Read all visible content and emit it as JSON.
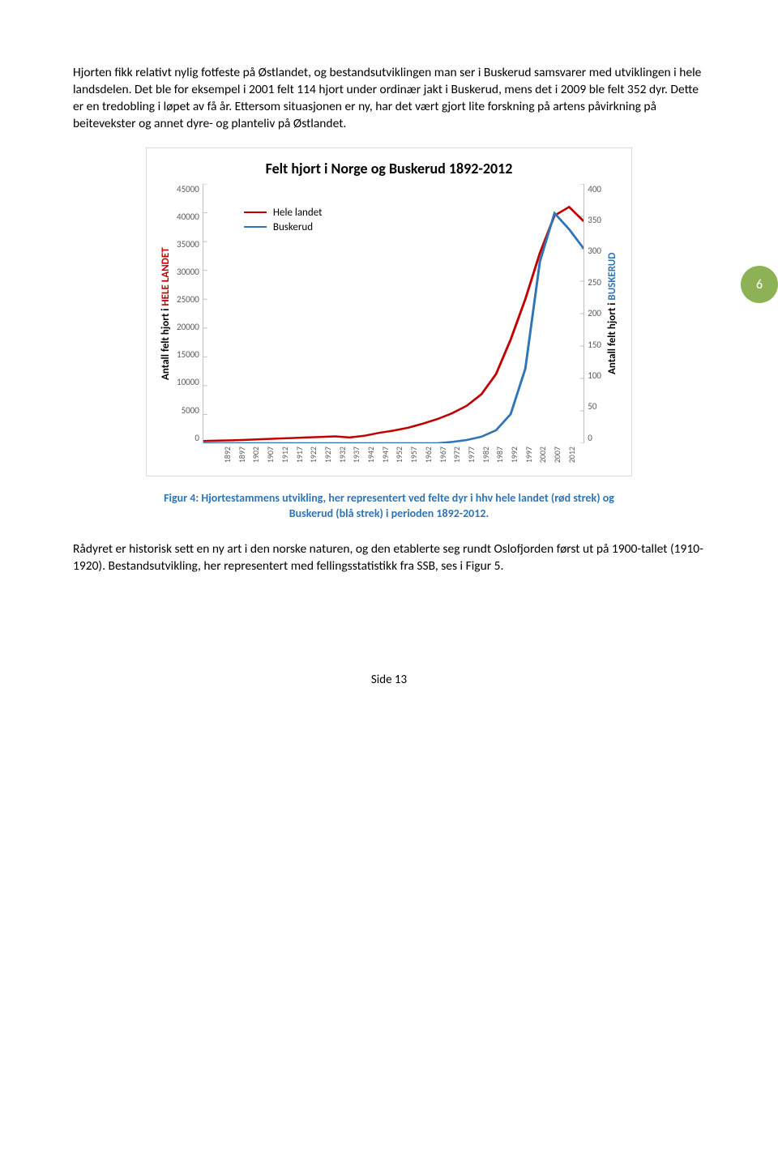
{
  "para1": "Hjorten fikk relativt nylig fotfeste på Østlandet, og bestandsutviklingen man ser i Buskerud samsvarer med utviklingen i hele landsdelen. Det ble for eksempel i 2001 felt  114 hjort under ordinær jakt i Buskerud, mens det i 2009 ble felt 352 dyr. Dette er en tredobling i løpet av få år. Ettersom situasjonen er ny, har det vært gjort lite forskning på artens påvirkning på beitevekster og annet dyre- og planteliv på Østlandet.",
  "page_badge": {
    "label": "6",
    "bg": "#8db256"
  },
  "chart": {
    "title": "Felt hjort i Norge og Buskerud 1892-2012",
    "ylabel_left_prefix": "Antall felt hjort i ",
    "ylabel_left_hi": "HELE LANDET",
    "ylabel_right_prefix": "Antall felt hjort i ",
    "ylabel_right_hi": "BUSKERUD",
    "y_left_ticks": [
      "45000",
      "40000",
      "35000",
      "30000",
      "25000",
      "20000",
      "15000",
      "10000",
      "5000",
      "0"
    ],
    "y_right_ticks": [
      "400",
      "350",
      "300",
      "250",
      "200",
      "150",
      "100",
      "50",
      "0"
    ],
    "x_ticks": [
      "1892",
      "1897",
      "1902",
      "1907",
      "1912",
      "1917",
      "1922",
      "1927",
      "1932",
      "1937",
      "1942",
      "1947",
      "1952",
      "1957",
      "1962",
      "1967",
      "1972",
      "1977",
      "1982",
      "1987",
      "1992",
      "1997",
      "2002",
      "2007",
      "2012"
    ],
    "legend": [
      {
        "label": "Hele landet",
        "color": "#c00000"
      },
      {
        "label": "Buskerud",
        "color": "#2e75b6"
      }
    ],
    "y_left_max": 45000,
    "y_right_max": 400,
    "series_left": {
      "color": "#c00000",
      "values": [
        400,
        450,
        500,
        600,
        700,
        800,
        900,
        1000,
        1100,
        1200,
        1000,
        1300,
        1800,
        2200,
        2700,
        3400,
        4200,
        5200,
        6500,
        8500,
        12000,
        18000,
        25000,
        33000,
        39500,
        41000,
        38500
      ]
    },
    "series_right": {
      "color": "#2e75b6",
      "values": [
        0,
        0,
        0,
        0,
        0,
        0,
        0,
        0,
        0,
        0,
        0,
        0,
        0,
        0,
        0,
        0,
        0,
        2,
        5,
        10,
        20,
        45,
        115,
        280,
        355,
        330,
        300
      ]
    }
  },
  "caption_prefix": "Figur 4: Hjortestammens utvikling, her representert ved felte dyr i hhv hele landet (rød strek) og Buskerud (blå strek) i perioden 1892-2012.",
  "caption_color": "#2e75b6",
  "para2": "Rådyret er historisk sett en ny art i den norske naturen, og den etablerte seg rundt Oslofjorden først ut på 1900-tallet (1910-1920). Bestandsutvikling, her representert med fellingsstatistikk fra SSB, ses i Figur 5.",
  "footer": "Side 13"
}
